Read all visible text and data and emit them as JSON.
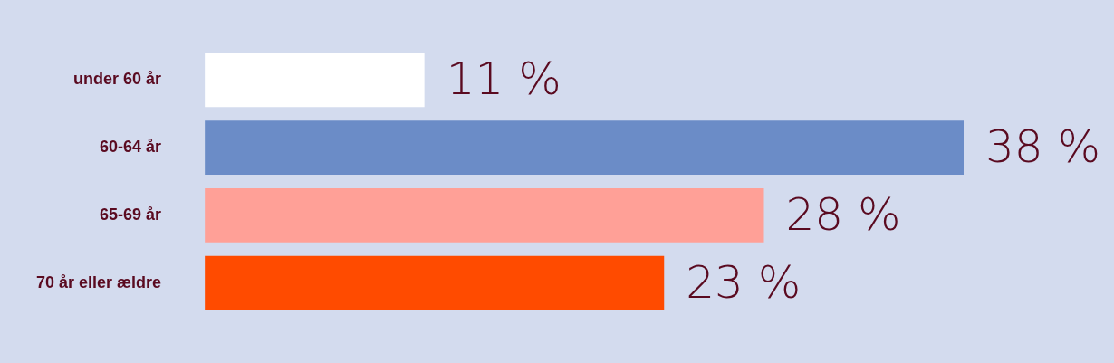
{
  "chart_data": {
    "type": "bar",
    "orientation": "horizontal",
    "categories": [
      "under 60 år",
      "60-64 år",
      "65-69 år",
      "70 år eller ældre"
    ],
    "values": [
      11,
      38,
      28,
      23
    ],
    "colors": [
      "#ffffff",
      "#6b8cc7",
      "#ffa097",
      "#ff4b00"
    ],
    "value_labels": [
      "11 %",
      "38 %",
      "28 %",
      "23 %"
    ]
  }
}
